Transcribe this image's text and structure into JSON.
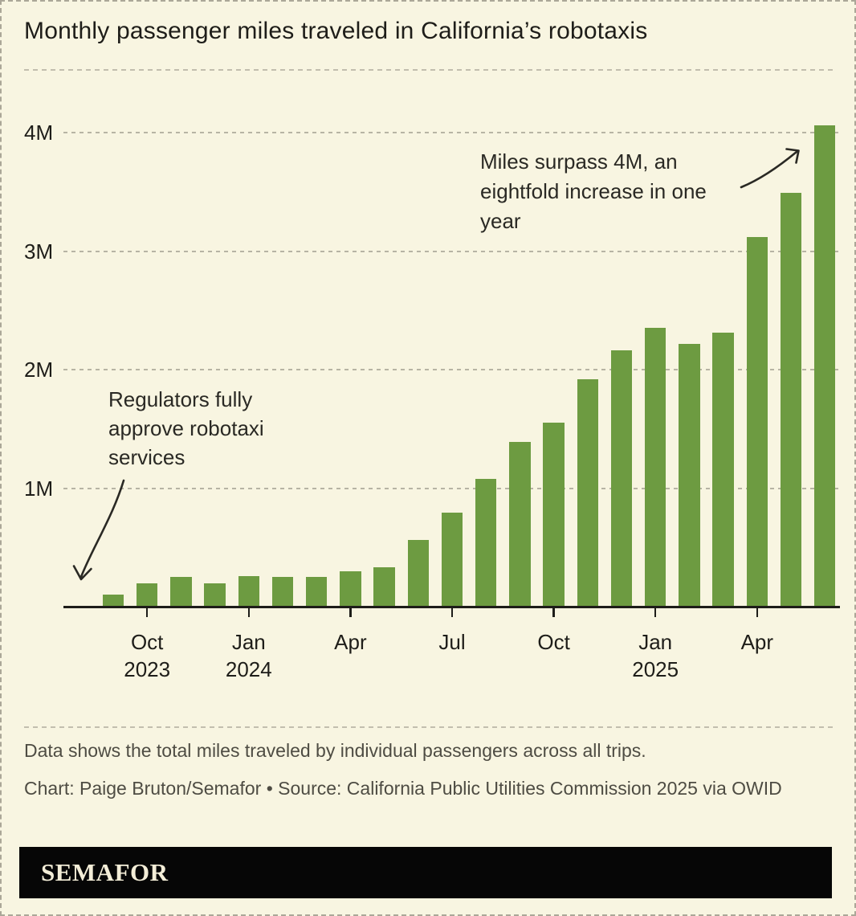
{
  "page": {
    "title": "Monthly passenger miles traveled in California’s robotaxis",
    "note": "Data shows the total miles traveled by individual passengers across all trips.",
    "credit": "Chart: Paige Bruton/Semafor  • Source: California Public Utilities Commission 2025 via OWID",
    "logo": "SEMAFOR"
  },
  "colors": {
    "background": "#f8f5e1",
    "bar": "#6d9b41",
    "ink": "#1e1d19",
    "annotation_text": "#2a2924",
    "footer_text": "#4e4c43",
    "gridline": "#b7b4a4",
    "border": "#aba798",
    "logo_bg": "#060606",
    "logo_text": "#f3edd7"
  },
  "chart_data": {
    "type": "bar",
    "title": "Monthly passenger miles traveled in California’s robotaxis",
    "xlabel": "",
    "ylabel": "",
    "ylim": [
      0,
      4.3
    ],
    "grid": "horizontal-dashed",
    "legend_position": "none",
    "categories": [
      "Sep 2023",
      "Oct 2023",
      "Nov 2023",
      "Dec 2023",
      "Jan 2024",
      "Feb 2024",
      "Mar 2024",
      "Apr 2024",
      "May 2024",
      "Jun 2024",
      "Jul 2024",
      "Aug 2024",
      "Sep 2024",
      "Oct 2024",
      "Nov 2024",
      "Dec 2024",
      "Jan 2025",
      "Feb 2025",
      "Mar 2025",
      "Apr 2025",
      "May 2025",
      "Jun 2025"
    ],
    "values_millions": [
      0.1,
      0.2,
      0.25,
      0.2,
      0.26,
      0.25,
      0.25,
      0.3,
      0.33,
      0.56,
      0.79,
      1.08,
      1.39,
      1.55,
      1.92,
      2.16,
      2.35,
      2.22,
      2.31,
      3.12,
      3.49,
      4.06
    ],
    "y_axis": {
      "ticks": [
        {
          "value": 1,
          "label": "1M"
        },
        {
          "value": 2,
          "label": "2M"
        },
        {
          "value": 3,
          "label": "3M"
        },
        {
          "value": 4,
          "label": "4M"
        }
      ]
    },
    "x_axis": {
      "ticks": [
        {
          "index": 1,
          "month": "Oct",
          "year": "2023"
        },
        {
          "index": 4,
          "month": "Jan",
          "year": "2024"
        },
        {
          "index": 7,
          "month": "Apr"
        },
        {
          "index": 10,
          "month": "Jul"
        },
        {
          "index": 13,
          "month": "Oct"
        },
        {
          "index": 16,
          "month": "Jan",
          "year": "2025"
        },
        {
          "index": 19,
          "month": "Apr"
        }
      ]
    },
    "annotations": [
      {
        "id": "regulators",
        "text": "Regulators fully approve robotaxi services"
      },
      {
        "id": "milestone",
        "text": "Miles surpass 4M, an eightfold increase in one year"
      }
    ]
  }
}
